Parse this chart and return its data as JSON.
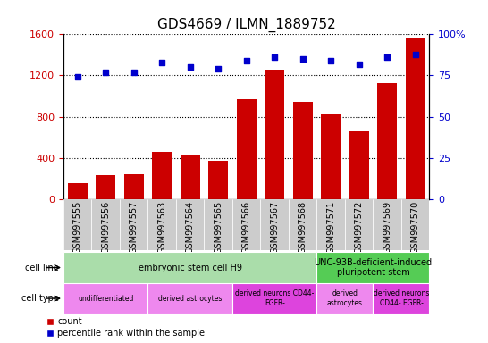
{
  "title": "GDS4669 / ILMN_1889752",
  "samples": [
    "GSM997555",
    "GSM997556",
    "GSM997557",
    "GSM997563",
    "GSM997564",
    "GSM997565",
    "GSM997566",
    "GSM997567",
    "GSM997568",
    "GSM997571",
    "GSM997572",
    "GSM997569",
    "GSM997570"
  ],
  "counts": [
    150,
    230,
    240,
    460,
    430,
    370,
    970,
    1260,
    940,
    820,
    660,
    1130,
    1570
  ],
  "percentile_ranks": [
    74,
    77,
    77,
    83,
    80,
    79,
    84,
    86,
    85,
    84,
    82,
    86,
    88
  ],
  "bar_color": "#cc0000",
  "dot_color": "#0000cc",
  "ylim_left": [
    0,
    1600
  ],
  "ylim_right": [
    0,
    100
  ],
  "yticks_left": [
    0,
    400,
    800,
    1200,
    1600
  ],
  "ytick_labels_left": [
    "0",
    "400",
    "800",
    "1200",
    "1600"
  ],
  "yticks_right": [
    0,
    25,
    50,
    75,
    100
  ],
  "ytick_labels_right": [
    "0",
    "25",
    "50",
    "75",
    "100%"
  ],
  "cell_line_groups": [
    {
      "label": "embryonic stem cell H9",
      "start": 0,
      "end": 9,
      "color": "#aaddaa"
    },
    {
      "label": "UNC-93B-deficient-induced\npluripotent stem",
      "start": 9,
      "end": 13,
      "color": "#55cc55"
    }
  ],
  "cell_type_groups": [
    {
      "label": "undifferentiated",
      "start": 0,
      "end": 3,
      "color": "#ee88ee"
    },
    {
      "label": "derived astrocytes",
      "start": 3,
      "end": 6,
      "color": "#ee88ee"
    },
    {
      "label": "derived neurons CD44-\nEGFR-",
      "start": 6,
      "end": 9,
      "color": "#dd44dd"
    },
    {
      "label": "derived\nastrocytes",
      "start": 9,
      "end": 11,
      "color": "#ee88ee"
    },
    {
      "label": "derived neurons\nCD44- EGFR-",
      "start": 11,
      "end": 13,
      "color": "#dd44dd"
    }
  ],
  "legend_count_color": "#cc0000",
  "legend_pct_color": "#0000cc",
  "tick_label_color_left": "#cc0000",
  "tick_label_color_right": "#0000cc",
  "xticklabel_bg": "#cccccc",
  "title_fontsize": 11,
  "bar_fontsize": 7,
  "axis_fontsize": 8,
  "cell_row_fontsize": 7,
  "row_label_fontsize": 7
}
